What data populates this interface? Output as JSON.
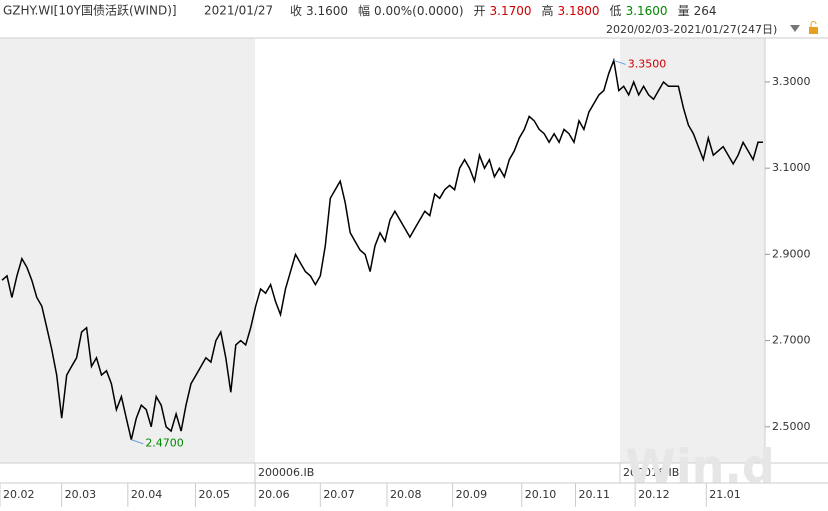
{
  "header": {
    "code": "GZHY.WI[10Y国债活跃(WIND)]",
    "date": "2021/01/27",
    "items": [
      {
        "label": "收",
        "value": "3.1600"
      },
      {
        "label": "幅",
        "value": "0.00%(0.0000)"
      },
      {
        "label": "开",
        "value": "3.1700"
      },
      {
        "label": "高",
        "value": "3.1800"
      },
      {
        "label": "低",
        "value": "3.1600"
      },
      {
        "label": "量",
        "value": "264"
      }
    ],
    "range": "2020/02/03-2021/01/27(247日)"
  },
  "chart_data": {
    "type": "line",
    "color": "#000000",
    "values": [
      2.84,
      2.85,
      2.8,
      2.85,
      2.89,
      2.87,
      2.84,
      2.8,
      2.78,
      2.73,
      2.68,
      2.62,
      2.52,
      2.62,
      2.64,
      2.66,
      2.72,
      2.73,
      2.64,
      2.66,
      2.62,
      2.63,
      2.6,
      2.54,
      2.57,
      2.52,
      2.47,
      2.52,
      2.55,
      2.54,
      2.5,
      2.57,
      2.55,
      2.5,
      2.49,
      2.53,
      2.49,
      2.55,
      2.6,
      2.62,
      2.64,
      2.66,
      2.65,
      2.7,
      2.72,
      2.66,
      2.58,
      2.69,
      2.7,
      2.69,
      2.73,
      2.78,
      2.82,
      2.81,
      2.83,
      2.79,
      2.76,
      2.82,
      2.86,
      2.9,
      2.88,
      2.86,
      2.85,
      2.83,
      2.85,
      2.92,
      3.03,
      3.05,
      3.07,
      3.02,
      2.95,
      2.93,
      2.91,
      2.9,
      2.86,
      2.92,
      2.95,
      2.93,
      2.98,
      3.0,
      2.98,
      2.96,
      2.94,
      2.96,
      2.98,
      3.0,
      2.99,
      3.04,
      3.03,
      3.05,
      3.06,
      3.05,
      3.1,
      3.12,
      3.1,
      3.07,
      3.13,
      3.1,
      3.12,
      3.08,
      3.1,
      3.08,
      3.12,
      3.14,
      3.17,
      3.19,
      3.22,
      3.21,
      3.19,
      3.18,
      3.16,
      3.18,
      3.16,
      3.19,
      3.18,
      3.16,
      3.21,
      3.19,
      3.23,
      3.25,
      3.27,
      3.28,
      3.32,
      3.35,
      3.28,
      3.29,
      3.27,
      3.3,
      3.27,
      3.29,
      3.27,
      3.26,
      3.28,
      3.3,
      3.29,
      3.29,
      3.29,
      3.24,
      3.2,
      3.18,
      3.15,
      3.12,
      3.17,
      3.13,
      3.14,
      3.15,
      3.13,
      3.11,
      3.13,
      3.16,
      3.14,
      3.12,
      3.16,
      3.16
    ],
    "xlim": [
      0,
      153
    ],
    "xticks": [
      {
        "value": 0,
        "label": "20.02"
      },
      {
        "value": 12.4,
        "label": "20.03"
      },
      {
        "value": 25.7,
        "label": "20.04"
      },
      {
        "value": 39.3,
        "label": "20.05"
      },
      {
        "value": 51.3,
        "label": "20.06"
      },
      {
        "value": 64.4,
        "label": "20.07"
      },
      {
        "value": 77.8,
        "label": "20.08"
      },
      {
        "value": 91.0,
        "label": "20.09"
      },
      {
        "value": 104.9,
        "label": "20.10"
      },
      {
        "value": 115.7,
        "label": "20.11"
      },
      {
        "value": 127.7,
        "label": "20.12"
      },
      {
        "value": 142.0,
        "label": "21.01"
      }
    ],
    "ylim": [
      2.416,
      3.402
    ],
    "yticks": [
      {
        "value": 2.5,
        "label": "2.5000"
      },
      {
        "value": 2.7,
        "label": "2.7000"
      },
      {
        "value": 2.9,
        "label": "2.9000"
      },
      {
        "value": 3.1,
        "label": "3.1000"
      },
      {
        "value": 3.3,
        "label": "3.3000"
      }
    ],
    "max_label": "3.3500",
    "min_label": "2.4700",
    "contracts": [
      "200006.IB",
      "200016.IB"
    ]
  }
}
